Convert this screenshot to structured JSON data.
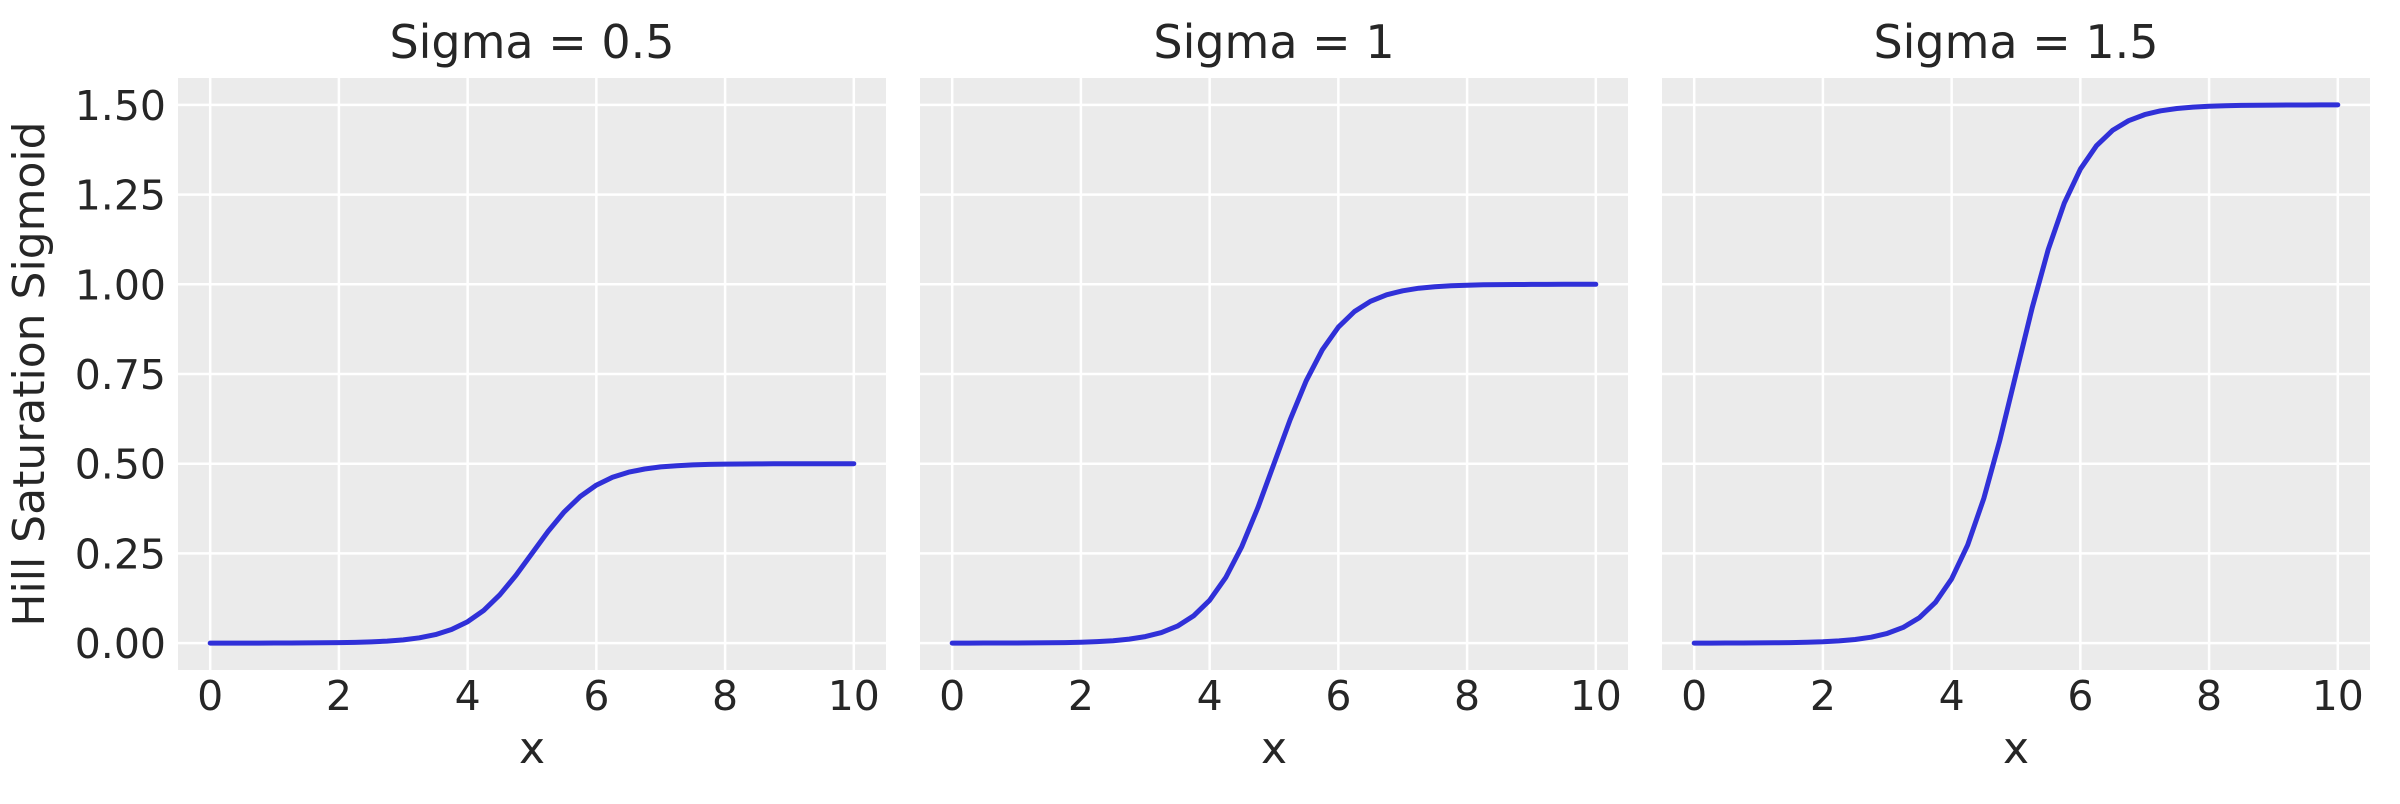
{
  "figure": {
    "ylabel": "Hill Saturation Sigmoid",
    "xlabel": "x",
    "colors": {
      "figure_bg": "#ffffff",
      "panel_bg": "#ebebeb",
      "grid": "#ffffff",
      "line": "#3030d8",
      "text": "#262626"
    }
  },
  "chart_data": [
    {
      "type": "line",
      "title": "Sigma = 0.5",
      "xlabel": "x",
      "ylabel": "Hill Saturation Sigmoid",
      "grid": true,
      "legend": false,
      "xlim": [
        -0.5,
        10.5
      ],
      "ylim": [
        -0.075,
        1.575
      ],
      "xticks": [
        0,
        2,
        4,
        6,
        8,
        10
      ],
      "yticks": [
        0,
        0.25,
        0.5,
        0.75,
        1,
        1.25,
        1.5
      ],
      "ytick_labels": [
        "0.00",
        "0.25",
        "0.50",
        "0.75",
        "1.00",
        "1.25",
        "1.50"
      ],
      "show_ytick_labels": true,
      "x": [
        0,
        0.25,
        0.5,
        0.75,
        1,
        1.25,
        1.5,
        1.75,
        2,
        2.25,
        2.5,
        2.75,
        3,
        3.25,
        3.5,
        3.75,
        4,
        4.25,
        4.5,
        4.75,
        5,
        5.25,
        5.5,
        5.75,
        6,
        6.25,
        6.5,
        6.75,
        7,
        7.25,
        7.5,
        7.75,
        8,
        8.25,
        8.5,
        8.75,
        9,
        9.25,
        9.5,
        9.75,
        10
      ],
      "series": [
        {
          "name": "sigma = 0.5",
          "values": [
            2e-05,
            4e-05,
            6e-05,
            0.0001,
            0.00017,
            0.00028,
            0.00046,
            0.00075,
            0.00124,
            0.00203,
            0.00335,
            0.00549,
            0.00899,
            0.01466,
            0.02371,
            0.03793,
            0.0596,
            0.09121,
            0.13447,
            0.18877,
            0.25,
            0.31123,
            0.36553,
            0.40879,
            0.4404,
            0.46207,
            0.47629,
            0.48534,
            0.49101,
            0.49451,
            0.49665,
            0.49797,
            0.49876,
            0.49925,
            0.49954,
            0.49972,
            0.49983,
            0.4999,
            0.49994,
            0.49996,
            0.49998
          ]
        }
      ]
    },
    {
      "type": "line",
      "title": "Sigma = 1",
      "xlabel": "x",
      "ylabel": "Hill Saturation Sigmoid",
      "grid": true,
      "legend": false,
      "xlim": [
        -0.5,
        10.5
      ],
      "ylim": [
        -0.075,
        1.575
      ],
      "xticks": [
        0,
        2,
        4,
        6,
        8,
        10
      ],
      "yticks": [
        0,
        0.25,
        0.5,
        0.75,
        1,
        1.25,
        1.5
      ],
      "ytick_labels": [
        "0.00",
        "0.25",
        "0.50",
        "0.75",
        "1.00",
        "1.25",
        "1.50"
      ],
      "show_ytick_labels": false,
      "x": [
        0,
        0.25,
        0.5,
        0.75,
        1,
        1.25,
        1.5,
        1.75,
        2,
        2.25,
        2.5,
        2.75,
        3,
        3.25,
        3.5,
        3.75,
        4,
        4.25,
        4.5,
        4.75,
        5,
        5.25,
        5.5,
        5.75,
        6,
        6.25,
        6.5,
        6.75,
        7,
        7.25,
        7.5,
        7.75,
        8,
        8.25,
        8.5,
        8.75,
        9,
        9.25,
        9.5,
        9.75,
        10
      ],
      "series": [
        {
          "name": "sigma = 1",
          "values": [
            5e-05,
            7e-05,
            0.00012,
            0.0002,
            0.00034,
            0.00055,
            0.00091,
            0.0015,
            0.00247,
            0.00407,
            0.00669,
            0.01099,
            0.01799,
            0.02931,
            0.04743,
            0.07586,
            0.1192,
            0.18243,
            0.26894,
            0.37754,
            0.5,
            0.62246,
            0.73106,
            0.81757,
            0.8808,
            0.92414,
            0.95257,
            0.97069,
            0.98201,
            0.98901,
            0.99331,
            0.99593,
            0.99753,
            0.9985,
            0.99909,
            0.99945,
            0.99966,
            0.9998,
            0.99988,
            0.99993,
            0.99995
          ]
        }
      ]
    },
    {
      "type": "line",
      "title": "Sigma = 1.5",
      "xlabel": "x",
      "ylabel": "Hill Saturation Sigmoid",
      "grid": true,
      "legend": false,
      "xlim": [
        -0.5,
        10.5
      ],
      "ylim": [
        -0.075,
        1.575
      ],
      "xticks": [
        0,
        2,
        4,
        6,
        8,
        10
      ],
      "yticks": [
        0,
        0.25,
        0.5,
        0.75,
        1,
        1.25,
        1.5
      ],
      "ytick_labels": [
        "0.00",
        "0.25",
        "0.50",
        "0.75",
        "1.00",
        "1.25",
        "1.50"
      ],
      "show_ytick_labels": false,
      "x": [
        0,
        0.25,
        0.5,
        0.75,
        1,
        1.25,
        1.5,
        1.75,
        2,
        2.25,
        2.5,
        2.75,
        3,
        3.25,
        3.5,
        3.75,
        4,
        4.25,
        4.5,
        4.75,
        5,
        5.25,
        5.5,
        5.75,
        6,
        6.25,
        6.5,
        6.75,
        7,
        7.25,
        7.5,
        7.75,
        8,
        8.25,
        8.5,
        8.75,
        9,
        9.25,
        9.5,
        9.75,
        10
      ],
      "series": [
        {
          "name": "sigma = 1.5",
          "values": [
            7e-05,
            0.00011,
            0.00019,
            0.00031,
            0.0005,
            0.00083,
            0.00137,
            0.00225,
            0.00371,
            0.0061,
            0.01004,
            0.01648,
            0.02698,
            0.04397,
            0.07114,
            0.11379,
            0.1788,
            0.27364,
            0.40341,
            0.56631,
            0.75,
            0.93369,
            1.09659,
            1.22636,
            1.3212,
            1.38621,
            1.42886,
            1.45603,
            1.47302,
            1.48352,
            1.48996,
            1.49389,
            1.49629,
            1.49775,
            1.49863,
            1.49917,
            1.4995,
            1.4997,
            1.49982,
            1.49989,
            1.49993
          ]
        }
      ]
    }
  ]
}
